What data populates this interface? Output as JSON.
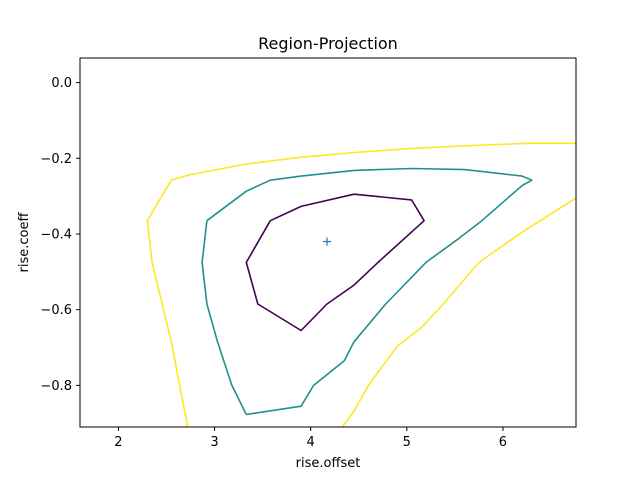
{
  "chart_data": {
    "type": "line",
    "title": "Region-Projection",
    "xlabel": "rise.offset",
    "ylabel": "rise.coeff",
    "xlim": [
      1.6,
      6.76
    ],
    "ylim": [
      -0.91,
      0.065
    ],
    "x_ticks": [
      2,
      3,
      4,
      5,
      6
    ],
    "y_ticks": [
      0.0,
      -0.2,
      -0.4,
      -0.6,
      -0.8
    ],
    "x_tick_labels": [
      "2",
      "3",
      "4",
      "5",
      "6"
    ],
    "y_tick_labels": [
      "0.0",
      "−0.2",
      "−0.4",
      "−0.6",
      "−0.8"
    ],
    "grid": false,
    "legend": "none",
    "marker": {
      "x": 4.17,
      "y": -0.42,
      "symbol": "+",
      "color": "#1f77b4"
    },
    "series": [
      {
        "color": "#440154",
        "closed": true,
        "points": [
          [
            3.58,
            -0.365
          ],
          [
            3.9,
            -0.327
          ],
          [
            4.45,
            -0.295
          ],
          [
            5.05,
            -0.31
          ],
          [
            5.18,
            -0.365
          ],
          [
            4.7,
            -0.475
          ],
          [
            4.45,
            -0.535
          ],
          [
            4.17,
            -0.585
          ],
          [
            3.9,
            -0.655
          ],
          [
            3.45,
            -0.585
          ],
          [
            3.33,
            -0.475
          ],
          [
            3.58,
            -0.365
          ]
        ]
      },
      {
        "color": "#21908d",
        "closed": true,
        "points": [
          [
            2.92,
            -0.365
          ],
          [
            3.33,
            -0.287
          ],
          [
            3.58,
            -0.258
          ],
          [
            3.9,
            -0.247
          ],
          [
            4.45,
            -0.232
          ],
          [
            5.05,
            -0.227
          ],
          [
            5.6,
            -0.23
          ],
          [
            6.2,
            -0.247
          ],
          [
            6.3,
            -0.258
          ],
          [
            6.2,
            -0.272
          ],
          [
            5.78,
            -0.365
          ],
          [
            5.55,
            -0.41
          ],
          [
            5.2,
            -0.475
          ],
          [
            4.78,
            -0.585
          ],
          [
            4.45,
            -0.685
          ],
          [
            4.35,
            -0.735
          ],
          [
            4.03,
            -0.8
          ],
          [
            3.9,
            -0.855
          ],
          [
            3.33,
            -0.877
          ],
          [
            3.18,
            -0.8
          ],
          [
            3.03,
            -0.685
          ],
          [
            2.92,
            -0.585
          ],
          [
            2.87,
            -0.475
          ],
          [
            2.92,
            -0.365
          ]
        ]
      },
      {
        "color": "#fde725",
        "closed": false,
        "points": [
          [
            6.76,
            -0.16
          ],
          [
            6.3,
            -0.16
          ],
          [
            5.6,
            -0.167
          ],
          [
            5.0,
            -0.175
          ],
          [
            4.45,
            -0.185
          ],
          [
            3.9,
            -0.197
          ],
          [
            3.33,
            -0.215
          ],
          [
            2.75,
            -0.243
          ],
          [
            2.55,
            -0.258
          ],
          [
            2.3,
            -0.365
          ],
          [
            2.35,
            -0.475
          ],
          [
            2.55,
            -0.685
          ],
          [
            2.72,
            -0.91
          ]
        ]
      },
      {
        "color": "#fde725",
        "closed": false,
        "points": [
          [
            4.33,
            -0.91
          ],
          [
            4.45,
            -0.868
          ],
          [
            4.6,
            -0.8
          ],
          [
            4.9,
            -0.697
          ],
          [
            5.15,
            -0.648
          ],
          [
            5.38,
            -0.585
          ],
          [
            5.75,
            -0.475
          ],
          [
            6.2,
            -0.395
          ],
          [
            6.76,
            -0.305
          ]
        ]
      }
    ]
  }
}
